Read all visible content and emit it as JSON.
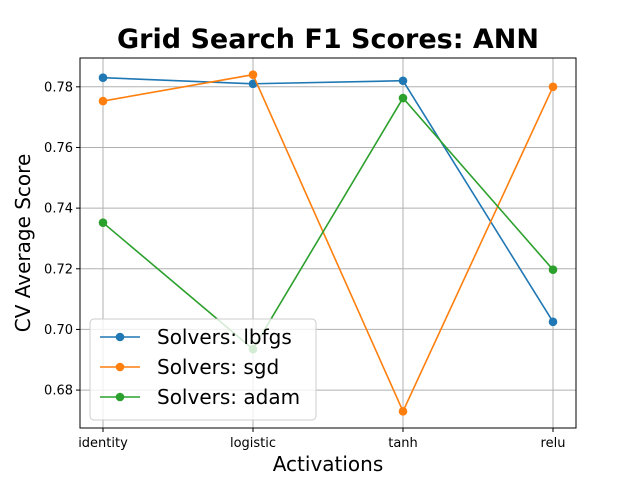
{
  "chart_data": {
    "type": "line",
    "title": "Grid Search F1 Scores: ANN",
    "xlabel": "Activations",
    "ylabel": "CV Average Score",
    "categories": [
      "identity",
      "logistic",
      "tanh",
      "relu"
    ],
    "ylim": [
      0.6675,
      0.7895
    ],
    "yticks": [
      0.68,
      0.7,
      0.72,
      0.74,
      0.76,
      0.78
    ],
    "grid": true,
    "legend_position": "lower-left",
    "series": [
      {
        "name": "Solvers: lbfgs",
        "color": "#1f77b4",
        "values": [
          0.783,
          0.781,
          0.782,
          0.7025
        ]
      },
      {
        "name": "Solvers: sgd",
        "color": "#ff7f0e",
        "values": [
          0.7753,
          0.784,
          0.673,
          0.78
        ]
      },
      {
        "name": "Solvers: adam",
        "color": "#2ca02c",
        "values": [
          0.7352,
          0.6935,
          0.7763,
          0.7197
        ]
      }
    ]
  }
}
